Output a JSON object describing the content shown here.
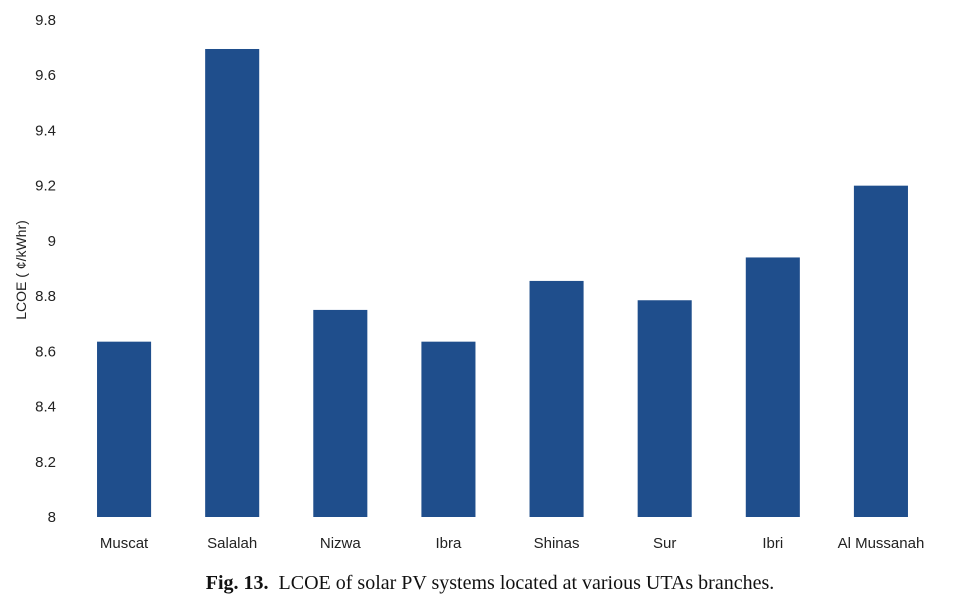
{
  "chart_data": {
    "type": "bar",
    "categories": [
      "Muscat",
      "Salalah",
      "Nizwa",
      "Ibra",
      "Shinas",
      "Sur",
      "Ibri",
      "Al Mussanah"
    ],
    "values": [
      8.635,
      9.695,
      8.75,
      8.635,
      8.855,
      8.785,
      8.94,
      9.2
    ],
    "ylabel": "LCOE ( ¢/kWhr)",
    "ylim": [
      8,
      9.8
    ],
    "yticks": [
      "8",
      "8.2",
      "8.4",
      "8.6",
      "8.8",
      "9",
      "9.2",
      "9.4",
      "9.6",
      "9.8"
    ],
    "grid": false,
    "bar_color": "#1f4e8c"
  },
  "caption": {
    "label": "Fig. 13.",
    "text": "LCOE of solar PV systems located at various UTAs branches."
  }
}
